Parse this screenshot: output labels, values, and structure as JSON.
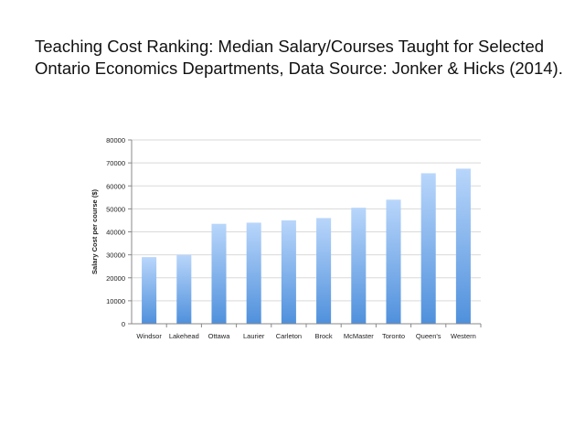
{
  "slide": {
    "title_line1": "Teaching Cost Ranking: Median Salary/Courses Taught for Selected",
    "title_line2": "Ontario Economics Departments, Data Source: Jonker & Hicks (2014)."
  },
  "chart_data": {
    "type": "bar",
    "title": "",
    "xlabel": "",
    "ylabel": "Salary Cost per course ($)",
    "ylim": [
      0,
      80000
    ],
    "yticks": [
      0,
      10000,
      20000,
      30000,
      40000,
      50000,
      60000,
      70000,
      80000
    ],
    "grid": true,
    "categories": [
      "Windsor",
      "Lakehead",
      "Ottawa",
      "Laurier",
      "Carleton",
      "Brock",
      "McMaster",
      "Toronto",
      "Queen's",
      "Western"
    ],
    "values": [
      29000,
      30000,
      43500,
      44000,
      45000,
      46000,
      50500,
      54000,
      65500,
      67500
    ],
    "colors": {
      "bar_top": "#b9d6fb",
      "bar_bottom": "#4f90dc",
      "grid": "#d9d9d9",
      "axis": "#888888"
    }
  }
}
